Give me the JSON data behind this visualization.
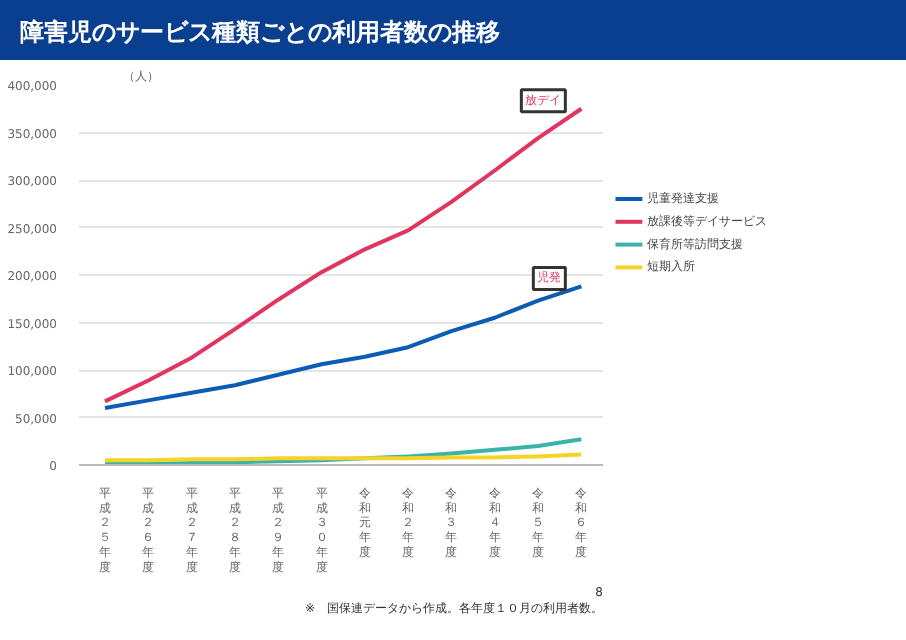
{
  "chart_data": {
    "type": "line",
    "title": "障害児のサービス種類ごとの利用者数の推移",
    "ylabel": "（人）",
    "categories": [
      "平成２５年度",
      "平成２６年度",
      "平成２７年度",
      "平成２８年度",
      "平成２９年度",
      "平成３０年度",
      "令和元年度",
      "令和２年度",
      "令和３年度",
      "令和４年度",
      "令和５年度",
      "令和６年度"
    ],
    "series": [
      {
        "name": "児童発達支援",
        "color": "#0b5cb5",
        "values": [
          60000,
          68000,
          76000,
          84000,
          95000,
          106000,
          114000,
          124000,
          141000,
          155000,
          173000,
          188000
        ]
      },
      {
        "name": "放課後等デイサービス",
        "color": "#e0355e",
        "values": [
          67000,
          89000,
          113000,
          143000,
          174000,
          203000,
          227000,
          247000,
          277000,
          310000,
          344000,
          375000
        ]
      },
      {
        "name": "保育所等訪問支援",
        "color": "#3bb3a8",
        "values": [
          1000,
          1000,
          2000,
          3000,
          4000,
          5000,
          7000,
          9000,
          12000,
          16000,
          20000,
          27000
        ]
      },
      {
        "name": "短期入所",
        "color": "#f5d327",
        "values": [
          5000,
          5000,
          6000,
          6000,
          7000,
          7000,
          7000,
          7000,
          8000,
          8000,
          9000,
          11000
        ]
      }
    ],
    "ylim": [
      0,
      400000
    ],
    "yticks": [
      {
        "value": 0,
        "label": "0"
      },
      {
        "value": 50000,
        "label": "50,000"
      },
      {
        "value": 100000,
        "label": "100,000"
      },
      {
        "value": 150000,
        "label": "150,000"
      },
      {
        "value": 200000,
        "label": "200,000"
      },
      {
        "value": 250000,
        "label": "250,000"
      },
      {
        "value": 300000,
        "label": "300,000"
      },
      {
        "value": 350000,
        "label": "350,000"
      },
      {
        "value": 400000,
        "label": "400,000"
      }
    ],
    "grid": "y",
    "legend": "right",
    "marker": "none",
    "line_style": "solid",
    "annotations": [
      {
        "text": "放デイ",
        "x": "令和６年度",
        "y": 375000
      },
      {
        "text": "児発",
        "x": "令和６年度",
        "y": 188000
      },
      "※　国保連データから作成。各年度１０月の利用者数。",
      "8"
    ]
  }
}
